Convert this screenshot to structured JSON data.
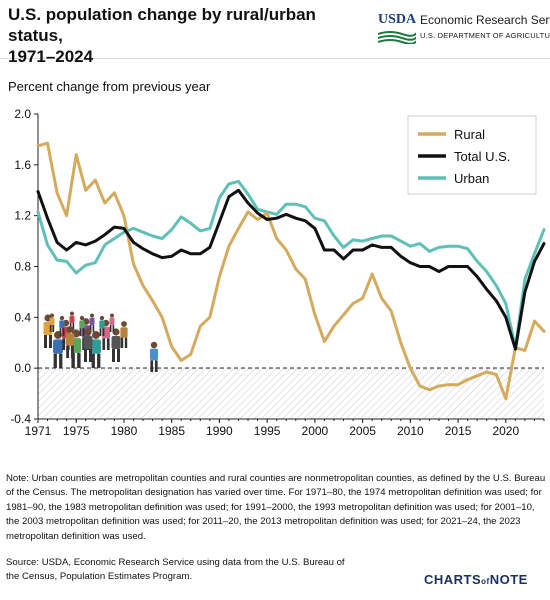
{
  "header": {
    "title_line1": "U.S. population change by rural/urban status,",
    "title_line2": "1971–2024",
    "logo_text": "USDA",
    "agency": "Economic Research Service",
    "department": "U.S. DEPARTMENT OF AGRICULTURE"
  },
  "chart_data": {
    "type": "line",
    "ylabel": "Percent change from previous year",
    "xlabel": "",
    "ylim": [
      -0.4,
      2.0
    ],
    "yticks": [
      -0.4,
      0.0,
      0.4,
      0.8,
      1.2,
      1.6,
      2.0
    ],
    "ytick_labels": [
      "-0.4",
      "0.0",
      "0.4",
      "0.8",
      "1.2",
      "1.6",
      "2.0"
    ],
    "xlim": [
      1971,
      2024
    ],
    "xticks": [
      1971,
      1975,
      1980,
      1985,
      1990,
      1995,
      2000,
      2005,
      2010,
      2015,
      2020
    ],
    "xtick_labels": [
      "1971",
      "1975",
      "1980",
      "1985",
      "1990",
      "1995",
      "2000",
      "2005",
      "2010",
      "2015",
      "2020"
    ],
    "grid": false,
    "zero_line": "dashed",
    "legend": "top-right",
    "x": [
      1971,
      1972,
      1973,
      1974,
      1975,
      1976,
      1977,
      1978,
      1979,
      1980,
      1981,
      1982,
      1983,
      1984,
      1985,
      1986,
      1987,
      1988,
      1989,
      1990,
      1991,
      1992,
      1993,
      1994,
      1995,
      1996,
      1997,
      1998,
      1999,
      2000,
      2001,
      2002,
      2003,
      2004,
      2005,
      2006,
      2007,
      2008,
      2009,
      2010,
      2011,
      2012,
      2013,
      2014,
      2015,
      2016,
      2017,
      2018,
      2019,
      2020,
      2021,
      2022,
      2023,
      2024
    ],
    "series": [
      {
        "name": "Rural",
        "color": "#d4aa5c",
        "values": [
          1.75,
          1.77,
          1.38,
          1.2,
          1.68,
          1.4,
          1.48,
          1.3,
          1.38,
          1.2,
          0.82,
          0.65,
          0.53,
          0.4,
          0.17,
          0.06,
          0.11,
          0.33,
          0.4,
          0.72,
          0.96,
          1.1,
          1.23,
          1.17,
          1.22,
          1.02,
          0.93,
          0.78,
          0.7,
          0.42,
          0.21,
          0.33,
          0.42,
          0.51,
          0.55,
          0.74,
          0.55,
          0.45,
          0.2,
          0.0,
          -0.14,
          -0.17,
          -0.14,
          -0.13,
          -0.13,
          -0.09,
          -0.06,
          -0.03,
          -0.05,
          -0.24,
          0.16,
          0.14,
          0.37,
          0.29
        ]
      },
      {
        "name": "Total U.S.",
        "color": "#111111",
        "values": [
          1.39,
          1.18,
          0.99,
          0.93,
          0.99,
          0.97,
          1.0,
          1.05,
          1.11,
          1.1,
          0.99,
          0.94,
          0.9,
          0.87,
          0.88,
          0.93,
          0.9,
          0.9,
          0.95,
          1.15,
          1.35,
          1.4,
          1.3,
          1.22,
          1.17,
          1.18,
          1.21,
          1.18,
          1.16,
          1.1,
          0.93,
          0.93,
          0.86,
          0.93,
          0.93,
          0.97,
          0.95,
          0.95,
          0.88,
          0.83,
          0.8,
          0.8,
          0.76,
          0.8,
          0.8,
          0.8,
          0.72,
          0.62,
          0.53,
          0.4,
          0.15,
          0.6,
          0.84,
          0.98
        ]
      },
      {
        "name": "Urban",
        "color": "#5ec0b7",
        "values": [
          1.23,
          0.97,
          0.85,
          0.84,
          0.75,
          0.81,
          0.83,
          0.97,
          1.02,
          1.07,
          1.1,
          1.07,
          1.04,
          1.02,
          1.09,
          1.19,
          1.14,
          1.08,
          1.1,
          1.34,
          1.45,
          1.47,
          1.37,
          1.25,
          1.23,
          1.21,
          1.29,
          1.29,
          1.27,
          1.18,
          1.16,
          1.04,
          0.95,
          1.01,
          1.0,
          1.02,
          1.04,
          1.04,
          1.0,
          0.96,
          0.98,
          0.92,
          0.95,
          0.96,
          0.96,
          0.94,
          0.84,
          0.76,
          0.65,
          0.51,
          0.16,
          0.7,
          0.9,
          1.09
        ]
      }
    ]
  },
  "note": "Note: Urban counties are metropolitan counties and rural counties are nonmetropolitan counties, as defined by the U.S. Bureau of the Census. The metropolitan designation has varied over time. For 1971–80, the 1974 metropolitan definition was used; for 1981–90, the 1983 metropolitan definition was used; for 1991–2000, the 1993 metropolitan definition was used; for 2001–10, the 2003 metropolitan definition was used; for 2011–20, the 2013 metropolitan definition was used; for 2021–24, the 2023 metropolitan definition was used.",
  "source": "Source: USDA, Economic Research Service using data from the U.S. Bureau of the Census, Population Estimates Program.",
  "footer": {
    "brand_part1": "CHARTS",
    "brand_part2": "of",
    "brand_part3": "NOTE"
  }
}
